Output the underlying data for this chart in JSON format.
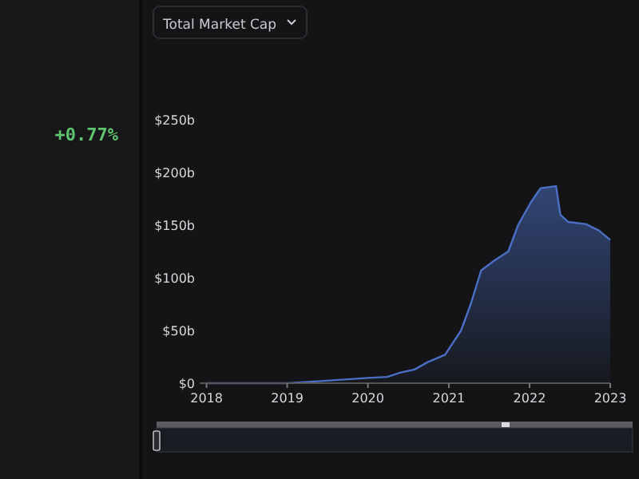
{
  "chart_data": {
    "type": "area",
    "title": "Total Market Cap",
    "annotations": [
      "+0.77%"
    ],
    "x": [
      "2018-01-01",
      "2019-01-01",
      "2019-06-01",
      "2020-01-01",
      "2020-03-28",
      "2020-05-25",
      "2020-07-30",
      "2020-09-27",
      "2020-12-15",
      "2021-02-25",
      "2021-04-10",
      "2021-05-27",
      "2021-07-30",
      "2021-09-27",
      "2021-11-10",
      "2022-01-08",
      "2022-02-20",
      "2022-05-01",
      "2022-05-20",
      "2022-06-25",
      "2022-09-12",
      "2022-11-10",
      "2023-01-01"
    ],
    "series": [
      {
        "color": "#4a6fc4",
        "values": [
          0,
          0,
          2,
          5,
          6,
          10,
          13,
          20,
          27,
          50,
          75,
          107,
          117,
          125,
          150,
          172,
          185,
          187,
          160,
          153,
          151,
          145,
          136
        ]
      }
    ],
    "xlim": [
      "2017-12-01",
      "2023-01-01"
    ],
    "xticks": [
      {
        "value": "2018-01-01",
        "label": "2018"
      },
      {
        "value": "2019-01-01",
        "label": "2019"
      },
      {
        "value": "2020-01-01",
        "label": "2020"
      },
      {
        "value": "2021-01-01",
        "label": "2021"
      },
      {
        "value": "2022-01-01",
        "label": "2022"
      },
      {
        "value": "2023-01-01",
        "label": "2023"
      }
    ],
    "ylim": [
      0,
      250
    ],
    "yticks": [
      {
        "value": 0,
        "label": "$0"
      },
      {
        "value": 50,
        "label": "$50b"
      },
      {
        "value": 100,
        "label": "$100b"
      },
      {
        "value": 150,
        "label": "$150b"
      },
      {
        "value": 200,
        "label": "$200b"
      },
      {
        "value": 250,
        "label": "$250b"
      }
    ],
    "grid": false
  }
}
